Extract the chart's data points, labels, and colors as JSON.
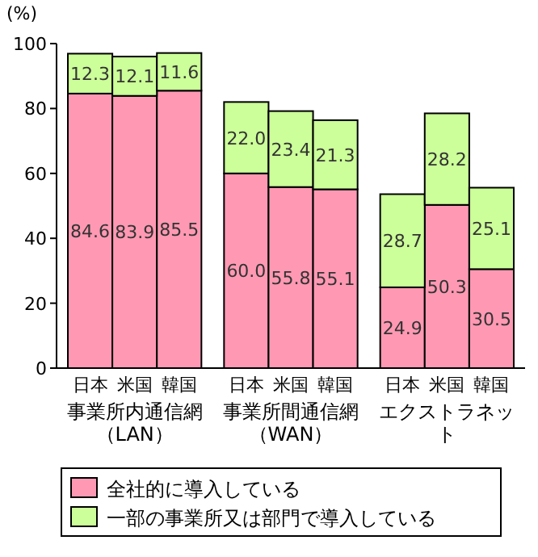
{
  "chart_data": {
    "type": "bar",
    "stacked": true,
    "ylabel": "(%)",
    "categories": [
      "日本",
      "米国",
      "韓国",
      "日本",
      "米国",
      "韓国",
      "日本",
      "米国",
      "韓国"
    ],
    "series": [
      {
        "name": "全社的に導入している",
        "color": "#ff99b3",
        "values": [
          84.6,
          83.9,
          85.5,
          60.0,
          55.8,
          55.1,
          24.9,
          50.3,
          30.5
        ],
        "value_labels": [
          "84.6",
          "83.9",
          "85.5",
          "60.0",
          "55.8",
          "55.1",
          "24.9",
          "50.3",
          "30.5"
        ]
      },
      {
        "name": "一部の事業所又は部門で導入している",
        "color": "#ccff99",
        "values": [
          12.3,
          12.1,
          11.6,
          22.0,
          23.4,
          21.3,
          28.7,
          28.2,
          25.1
        ],
        "value_labels": [
          "12.3",
          "12.1",
          "11.6",
          "22.0",
          "23.4",
          "21.3",
          "28.7",
          "28.2",
          "25.1"
        ]
      }
    ],
    "annotations": [
      "事業所内通信網（LAN）",
      "事業所間通信網（WAN）",
      "エクストラネット"
    ],
    "ylim": [
      0,
      100
    ],
    "yticks": [
      0,
      20,
      40,
      60,
      80,
      100
    ],
    "legend": "bottom",
    "grid": false
  }
}
